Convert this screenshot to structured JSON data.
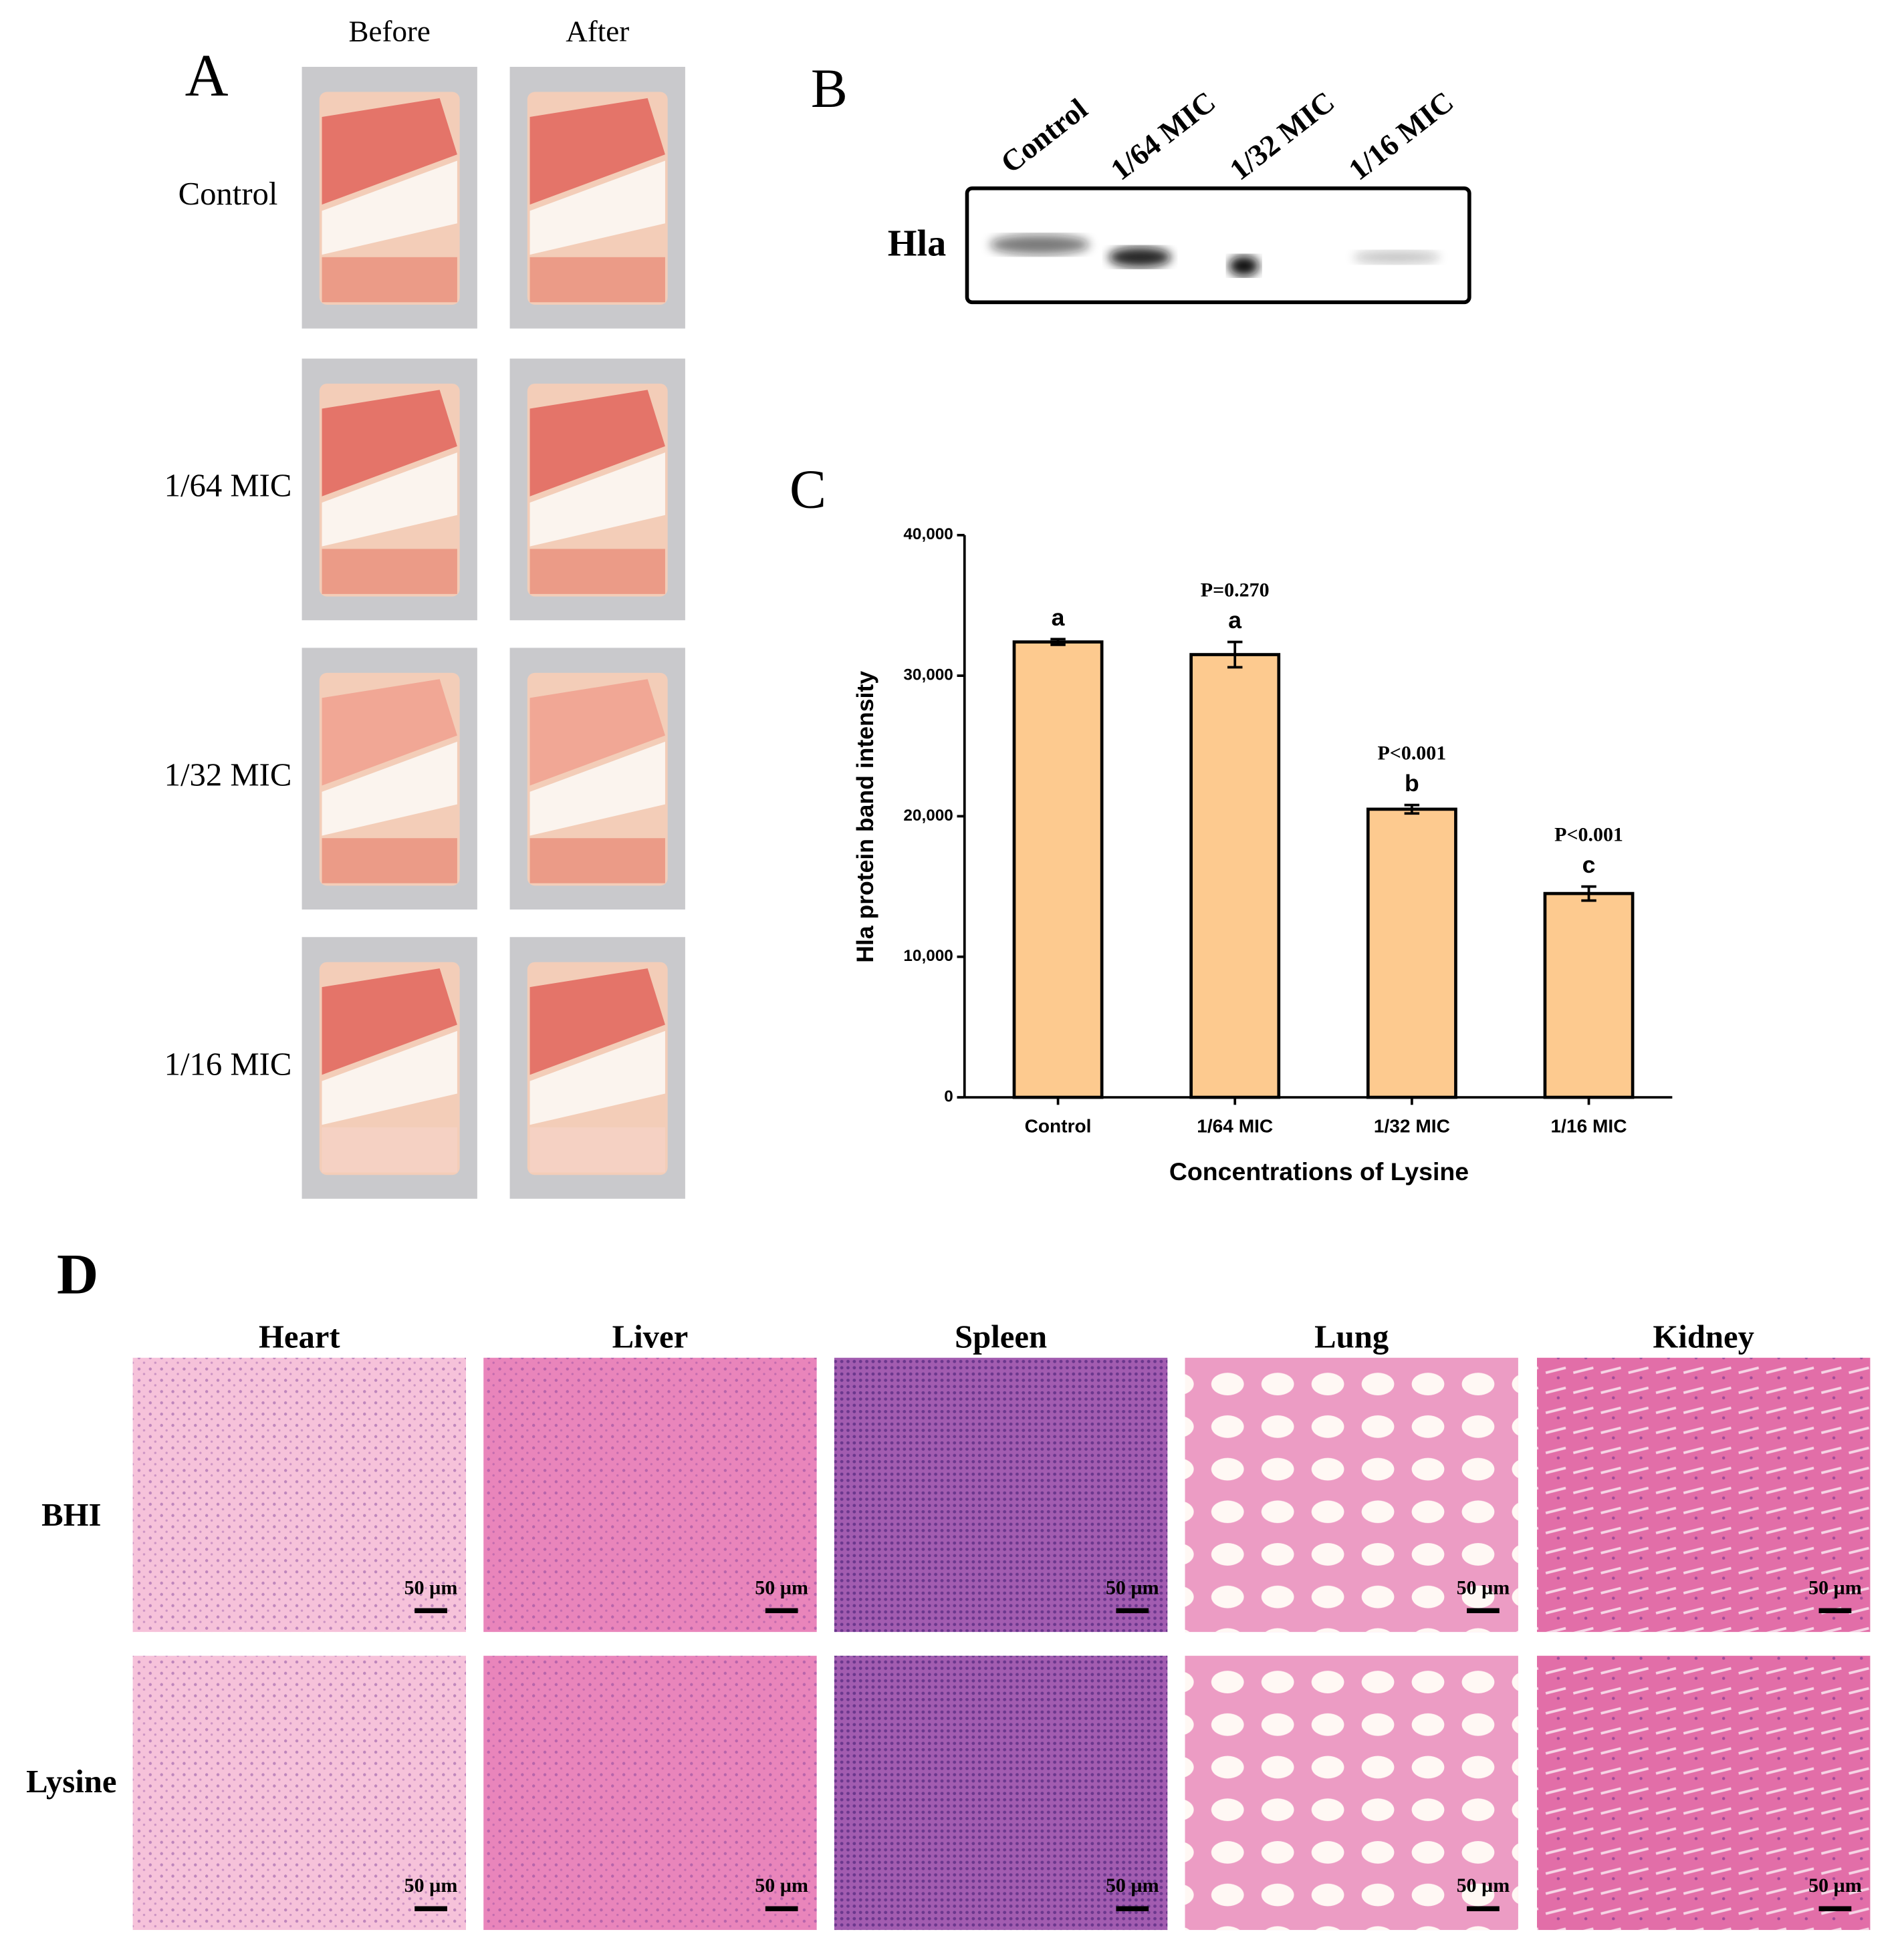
{
  "panel_a": {
    "label": "A",
    "columns": [
      "Before",
      "After"
    ],
    "rows": [
      "Control",
      "1/64 MIC",
      "1/32 MIC",
      "1/16 MIC"
    ]
  },
  "panel_b": {
    "label": "B",
    "band": "Hla",
    "lanes": [
      "Control",
      "1/64 MIC",
      "1/32 MIC",
      "1/16 MIC"
    ]
  },
  "panel_c": {
    "label": "C"
  },
  "chart_data": {
    "type": "bar",
    "x_label": "Concentrations of Lysine",
    "y_label": "Hla protein band intensity",
    "categories": [
      "Control",
      "1/64 MIC",
      "1/32 MIC",
      "1/16 MIC"
    ],
    "values": [
      32400,
      31500,
      20500,
      14500
    ],
    "errors": [
      200,
      900,
      300,
      500
    ],
    "significance_letters": [
      "a",
      "a",
      "b",
      "c"
    ],
    "p_values": [
      null,
      "P=0.270",
      "P<0.001",
      "P<0.001"
    ],
    "color": "#fdca8f",
    "ylim": [
      0,
      40000
    ],
    "yticks": [
      0,
      {
        "value": 10000,
        "label": "10,000"
      },
      {
        "value": 20000,
        "label": "20,000"
      },
      {
        "value": 30000,
        "label": "30,000"
      },
      {
        "value": 40000,
        "label": "40,000"
      }
    ]
  },
  "panel_d": {
    "label": "D",
    "columns": [
      "Heart",
      "Liver",
      "Spleen",
      "Lung",
      "Kidney"
    ],
    "rows": [
      "BHI",
      "Lysine"
    ],
    "scale_bar": "50 µm"
  }
}
